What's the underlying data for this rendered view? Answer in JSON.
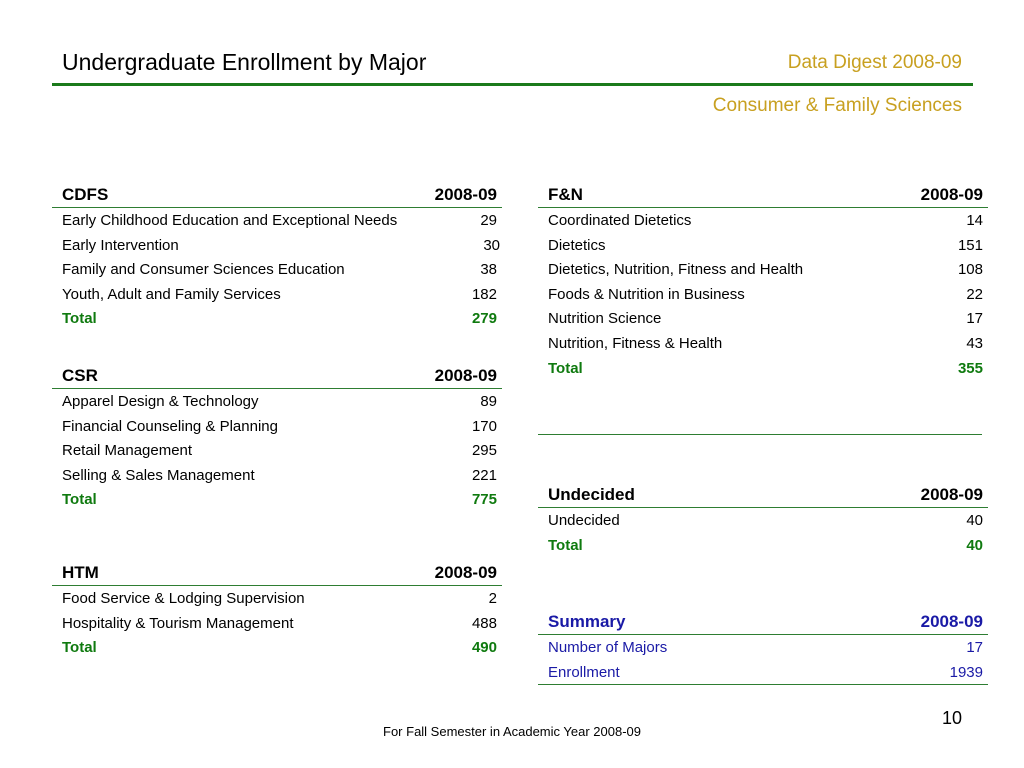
{
  "header": {
    "title": "Undergraduate Enrollment by Major",
    "digest": "Data Digest 2008-09",
    "department": "Consumer & Family Sciences"
  },
  "colors": {
    "accent_green": "#2e7d32",
    "rule_green": "#1b7a1b",
    "gold": "#c8a020",
    "total_green": "#0f7a0f",
    "summary_blue": "#1a1aa6"
  },
  "cdfs": {
    "name": "CDFS",
    "year": "2008-09",
    "rows": [
      {
        "label": "Early Childhood Education and Exceptional Needs",
        "value": "29"
      },
      {
        "label": "Early Intervention",
        "value": "30"
      },
      {
        "label": "Family and Consumer Sciences Education",
        "value": "38"
      },
      {
        "label": "Youth, Adult and Family Services",
        "value": "182"
      }
    ],
    "total_label": "Total",
    "total_value": "279"
  },
  "csr": {
    "name": "CSR",
    "year": "2008-09",
    "rows": [
      {
        "label": "Apparel Design & Technology",
        "value": "89"
      },
      {
        "label": "Financial Counseling & Planning",
        "value": "170"
      },
      {
        "label": "Retail Management",
        "value": "295"
      },
      {
        "label": "Selling & Sales Management",
        "value": "221"
      }
    ],
    "total_label": "Total",
    "total_value": "775"
  },
  "htm": {
    "name": "HTM",
    "year": "2008-09",
    "rows": [
      {
        "label": "Food Service & Lodging Supervision",
        "value": "2"
      },
      {
        "label": "Hospitality & Tourism Management",
        "value": "488"
      }
    ],
    "total_label": "Total",
    "total_value": "490"
  },
  "fn": {
    "name": "F&N",
    "year": "2008-09",
    "rows": [
      {
        "label": "Coordinated Dietetics",
        "value": "14"
      },
      {
        "label": "Dietetics",
        "value": "151"
      },
      {
        "label": "Dietetics, Nutrition, Fitness and Health",
        "value": "108"
      },
      {
        "label": "Foods & Nutrition in Business",
        "value": "22"
      },
      {
        "label": "Nutrition Science",
        "value": "17"
      },
      {
        "label": "Nutrition, Fitness & Health",
        "value": "43"
      }
    ],
    "total_label": "Total",
    "total_value": "355"
  },
  "undecided": {
    "name": "Undecided",
    "year": "2008-09",
    "rows": [
      {
        "label": "Undecided",
        "value": "40"
      }
    ],
    "total_label": "Total",
    "total_value": "40"
  },
  "summary": {
    "name": "Summary",
    "year": "2008-09",
    "rows": [
      {
        "label": "Number of Majors",
        "value": "17"
      },
      {
        "label": "Enrollment",
        "value": "1939"
      }
    ]
  },
  "footer": {
    "note": "For Fall Semester in Academic Year 2008-09",
    "page_number": "10"
  }
}
